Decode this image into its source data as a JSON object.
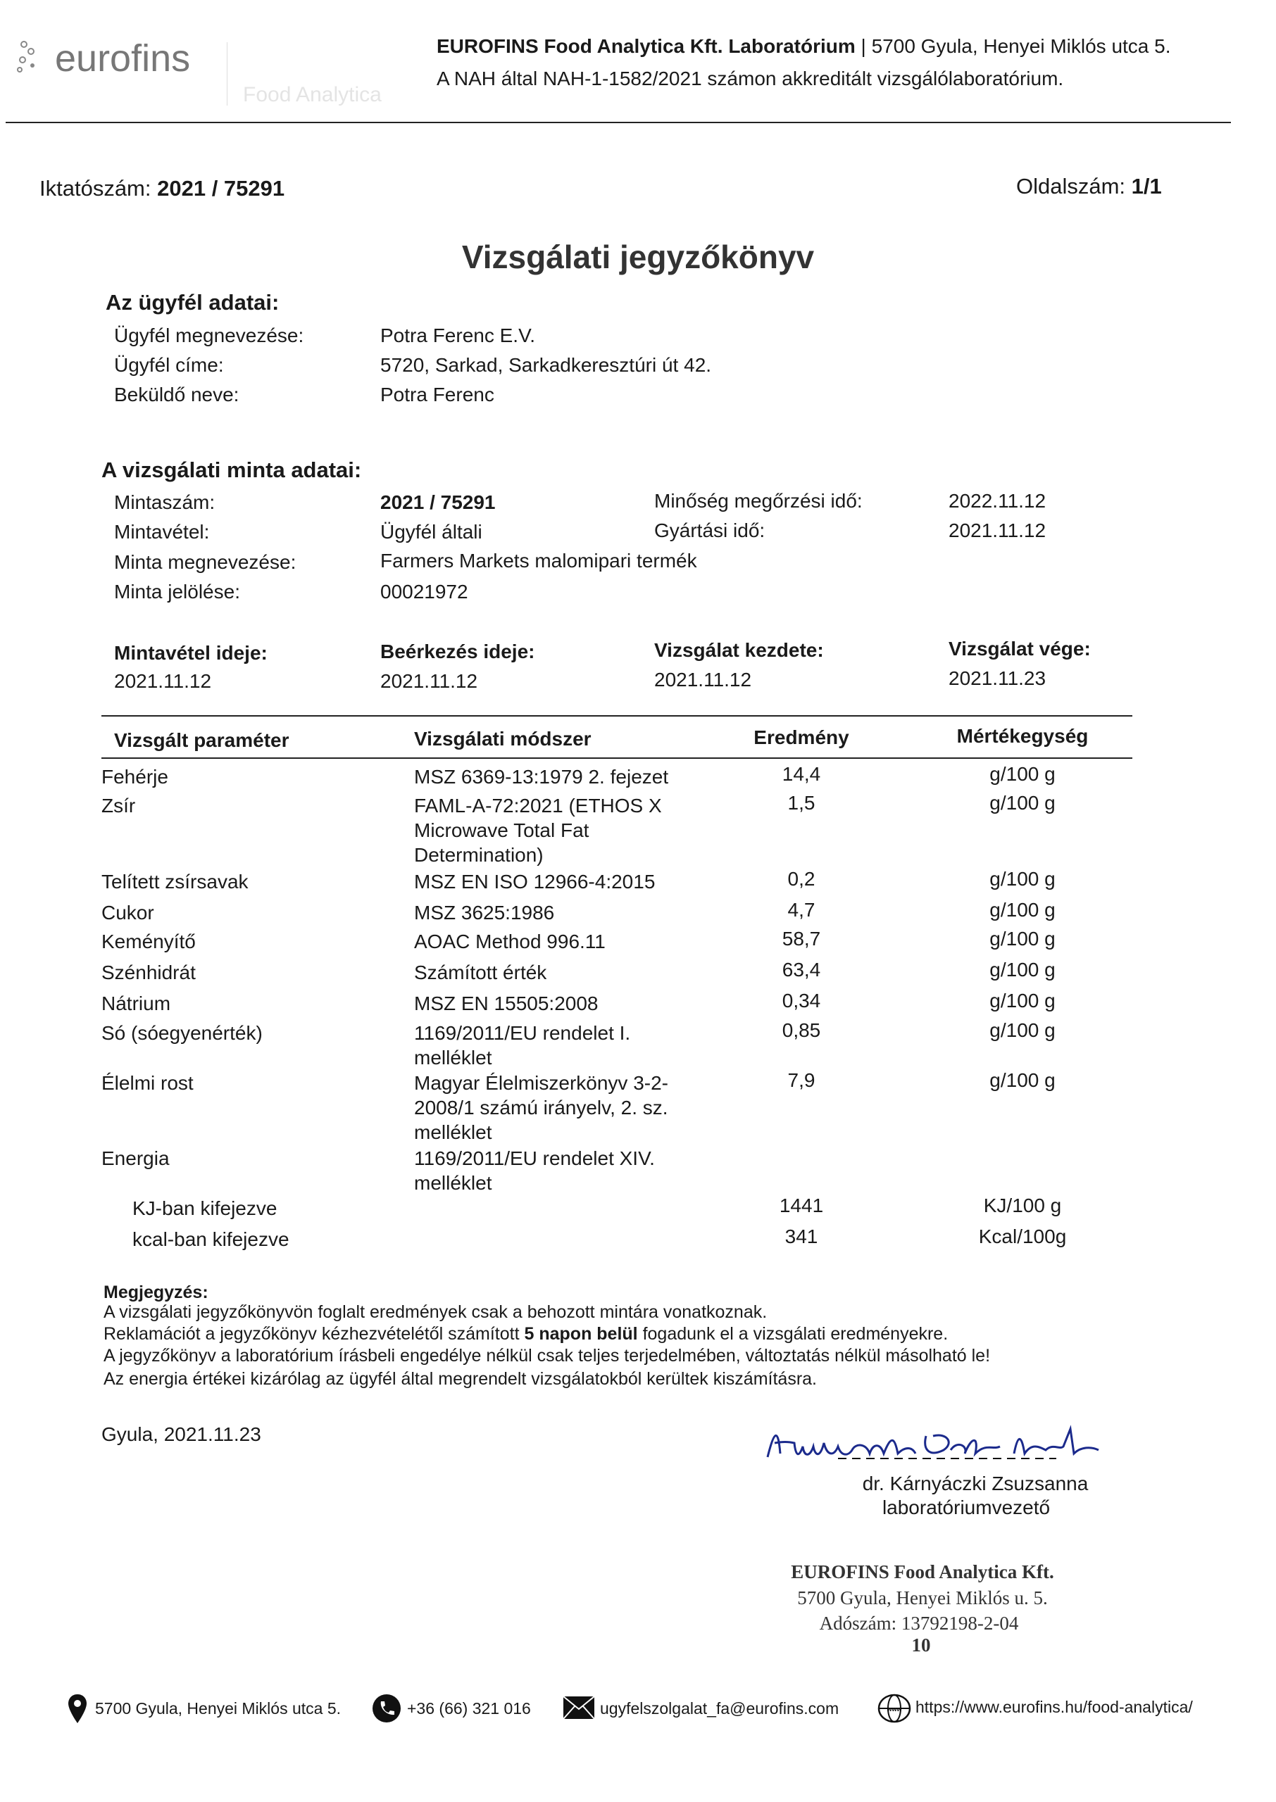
{
  "header": {
    "logo_text": "eurofins",
    "logo_subtext": "Food Analytica",
    "lab_line_bold": "EUROFINS Food Analytica Kft. Laboratórium",
    "lab_line_rest": " | 5700 Gyula, Henyei Miklós utca 5.",
    "accreditation": "A NAH által NAH-1-1582/2021 számon akkreditált vizsgálólaboratórium."
  },
  "meta": {
    "ref_label": "Iktatószám:",
    "ref_value": "2021 / 75291",
    "page_label": "Oldalszám:",
    "page_value": "1/1"
  },
  "title": "Vizsgálati jegyzőkönyv",
  "client": {
    "heading": "Az ügyfél adatai:",
    "rows": [
      {
        "label": "Ügyfél megnevezése:",
        "value": "Potra Ferenc E.V."
      },
      {
        "label": "Ügyfél címe:",
        "value": "5720, Sarkad, Sarkadkeresztúri út 42."
      },
      {
        "label": "Beküldő neve:",
        "value": "Potra Ferenc"
      }
    ]
  },
  "sample": {
    "heading": "A vizsgálati minta adatai:",
    "number_label": "Mintaszám:",
    "number_value": "2021 / 75291",
    "sampling_label": "Mintavétel:",
    "sampling_value": "Ügyfél általi",
    "name_label": "Minta megnevezése:",
    "name_value": "Farmers Markets malomipari termék",
    "mark_label": "Minta jelölése:",
    "mark_value": "00021972",
    "bestbefore_label": "Minőség megőrzési idő:",
    "bestbefore_value": "2022.11.12",
    "production_label": "Gyártási idő:",
    "production_value": "2021.11.12"
  },
  "dates": [
    {
      "label": "Mintavétel ideje:",
      "value": "2021.11.12"
    },
    {
      "label": "Beérkezés ideje:",
      "value": "2021.11.12"
    },
    {
      "label": "Vizsgálat kezdete:",
      "value": "2021.11.12"
    },
    {
      "label": "Vizsgálat vége:",
      "value": "2021.11.23"
    }
  ],
  "table": {
    "headers": [
      "Vizsgált paraméter",
      "Vizsgálati módszer",
      "Eredmény",
      "Mértékegység"
    ],
    "rows": [
      {
        "param": "Fehérje",
        "method": "MSZ 6369-13:1979 2. fejezet",
        "result": "14,4",
        "unit": "g/100 g"
      },
      {
        "param": "Zsír",
        "method": "FAML-A-72:2021 (ETHOS X Microwave Total Fat Determination)",
        "result": "1,5",
        "unit": "g/100 g"
      },
      {
        "param": "Telített zsírsavak",
        "method": "MSZ EN ISO 12966-4:2015",
        "result": "0,2",
        "unit": "g/100 g"
      },
      {
        "param": "Cukor",
        "method": "MSZ 3625:1986",
        "result": "4,7",
        "unit": "g/100 g"
      },
      {
        "param": "Keményítő",
        "method": "AOAC Method 996.11",
        "result": "58,7",
        "unit": "g/100 g"
      },
      {
        "param": "Szénhidrát",
        "method": "Számított érték",
        "result": "63,4",
        "unit": "g/100 g"
      },
      {
        "param": "Nátrium",
        "method": "MSZ EN 15505:2008",
        "result": "0,34",
        "unit": "g/100 g"
      },
      {
        "param": "Só (sóegyenérték)",
        "method": "1169/2011/EU rendelet I. melléklet",
        "result": "0,85",
        "unit": "g/100 g"
      },
      {
        "param": "Élelmi rost",
        "method": "Magyar Élelmiszerkönyv 3-2-2008/1 számú irányelv, 2. sz. melléklet",
        "result": "7,9",
        "unit": "g/100 g"
      },
      {
        "param": "Energia",
        "method": "1169/2011/EU rendelet XIV. melléklet",
        "result": "",
        "unit": ""
      },
      {
        "param": "KJ-ban kifejezve",
        "method": "",
        "result": "1441",
        "unit": "KJ/100 g"
      },
      {
        "param": "kcal-ban kifejezve",
        "method": "",
        "result": "341",
        "unit": "Kcal/100g"
      }
    ]
  },
  "notes": {
    "heading": "Megjegyzés:",
    "line1": "A vizsgálati jegyzőkönyvön foglalt eredmények csak a behozott mintára vonatkoznak.",
    "line2_a": "Reklamációt a jegyzőkönyv kézhezvételétől számított ",
    "line2_b": "5 napon belül",
    "line2_c": " fogadunk el a vizsgálati eredményekre.",
    "line3": "A jegyzőkönyv a laboratórium írásbeli engedélye nélkül csak teljes terjedelmében, változtatás nélkül másolható le!",
    "line4": "Az energia értékei kizárólag az ügyfél által megrendelt vizsgálatokból kerültek kiszámításra."
  },
  "place_date": "Gyula, 2021.11.23",
  "signature": {
    "name": "dr. Kárnyáczki Zsuzsanna",
    "role": "laboratóriumvezető",
    "ink_color": "#1b2a8c"
  },
  "stamp": {
    "line1": "EUROFINS Food Analytica Kft.",
    "line2": "5700 Gyula, Henyei Miklós u. 5.",
    "line3": "Adószám: 13792198-2-04",
    "line4": "10"
  },
  "footer": {
    "address": "5700 Gyula, Henyei Miklós utca 5.",
    "phone": "+36 (66) 321 016",
    "email": "ugyfelszolgalat_fa@eurofins.com",
    "web": "https://www.eurofins.hu/food-analytica/"
  }
}
